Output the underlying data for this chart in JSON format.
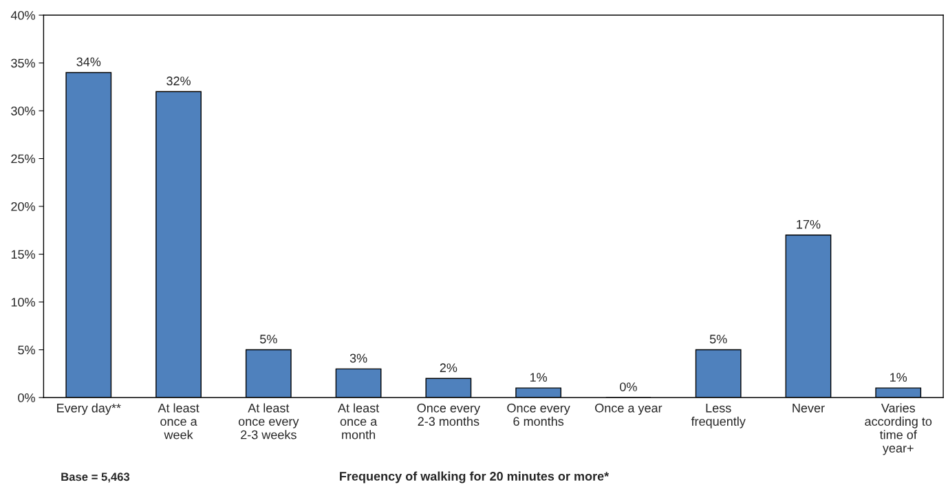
{
  "chart_data": {
    "type": "bar",
    "xlabel": "Frequency of walking for 20 minutes or more*",
    "categories": [
      "Every day**",
      "At least\nonce a\nweek",
      "At least\nonce every\n2-3 weeks",
      "At least\nonce a\nmonth",
      "Once every\n2-3 months",
      "Once every\n6 months",
      "Once a year",
      "Less\nfrequently",
      "Never",
      "Varies\naccording to\ntime of\nyear+"
    ],
    "values": [
      34,
      32,
      5,
      3,
      2,
      1,
      0,
      5,
      17,
      1
    ],
    "value_labels": [
      "34%",
      "32%",
      "5%",
      "3%",
      "2%",
      "1%",
      "0%",
      "5%",
      "17%",
      "1%"
    ],
    "color": "#4f81bd",
    "ylim": [
      0,
      40
    ],
    "yticks": [
      {
        "value": 0,
        "label": "0%"
      },
      {
        "value": 5,
        "label": "5%"
      },
      {
        "value": 10,
        "label": "10%"
      },
      {
        "value": 15,
        "label": "15%"
      },
      {
        "value": 20,
        "label": "20%"
      },
      {
        "value": 25,
        "label": "25%"
      },
      {
        "value": 30,
        "label": "30%"
      },
      {
        "value": 35,
        "label": "35%"
      },
      {
        "value": 40,
        "label": "40%"
      }
    ],
    "grid": false,
    "legend": false,
    "annotations": [
      "Base = 5,463"
    ]
  }
}
